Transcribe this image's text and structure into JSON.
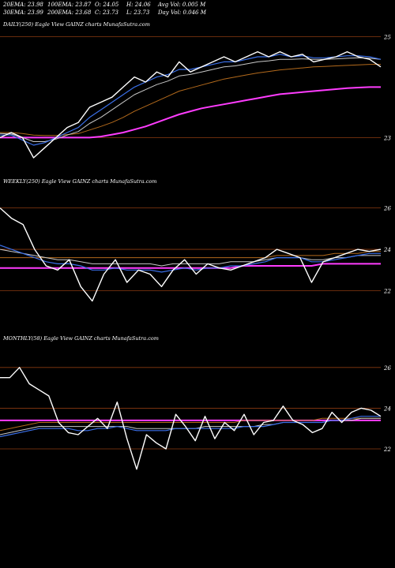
{
  "header": {
    "row1": [
      {
        "label": "20EMA:",
        "value": "23.98"
      },
      {
        "label": "100EMA:",
        "value": "23.87"
      },
      {
        "label": "O:",
        "value": "24.05"
      },
      {
        "label": "H:",
        "value": "24.06"
      },
      {
        "label": "Avg Vol:",
        "value": "0.005 M"
      }
    ],
    "row2": [
      {
        "label": "30EMA:",
        "value": "23.99"
      },
      {
        "label": "200EMA:",
        "value": "23.68"
      },
      {
        "label": "C:",
        "value": "23.73"
      },
      {
        "label": "L:",
        "value": "23.73"
      },
      {
        "label": "Day Vol:",
        "value": "0.046 M"
      }
    ]
  },
  "panels": [
    {
      "label": "DAILY(250) Eagle  View  GAINZ charts MunafaSutra.com"
    },
    {
      "label": "WEEKLY(250) Eagle  View  GAINZ charts MunafaSutra.com"
    },
    {
      "label": "MONTHLY(58) Eagle  View  GAINZ charts MunafaSutra.com"
    }
  ],
  "colors": {
    "price": "#ffffff",
    "ema_short": "#3a6fe8",
    "ema_mid": "#c8c8c8",
    "ema_long": "#b36a1c",
    "ema_200": "#ff3cff",
    "grid": "#8a3a10"
  },
  "chart_data": [
    {
      "type": "line",
      "title": "DAILY(250)",
      "ylim": [
        22.6,
        25.1
      ],
      "ticks": [
        {
          "value": 25,
          "label": "25"
        },
        {
          "value": 23,
          "label": "23"
        }
      ],
      "series": [
        {
          "role": "price",
          "values": [
            23.0,
            23.1,
            23.0,
            22.6,
            22.8,
            23.0,
            23.2,
            23.3,
            23.6,
            23.7,
            23.8,
            24.0,
            24.2,
            24.1,
            24.3,
            24.2,
            24.5,
            24.3,
            24.4,
            24.5,
            24.6,
            24.5,
            24.6,
            24.7,
            24.6,
            24.7,
            24.6,
            24.65,
            24.5,
            24.55,
            24.6,
            24.7,
            24.6,
            24.55,
            24.4
          ]
        },
        {
          "role": "ema_short",
          "values": [
            23.05,
            23.05,
            22.95,
            22.85,
            22.9,
            23.0,
            23.1,
            23.2,
            23.4,
            23.55,
            23.7,
            23.85,
            24.0,
            24.1,
            24.2,
            24.25,
            24.35,
            24.35,
            24.4,
            24.45,
            24.5,
            24.5,
            24.55,
            24.6,
            24.6,
            24.65,
            24.6,
            24.62,
            24.58,
            24.58,
            24.6,
            24.62,
            24.62,
            24.6,
            24.55
          ]
        },
        {
          "role": "ema_mid",
          "values": [
            23.08,
            23.07,
            23.0,
            22.92,
            22.92,
            22.97,
            23.05,
            23.12,
            23.28,
            23.4,
            23.55,
            23.7,
            23.85,
            23.95,
            24.05,
            24.12,
            24.22,
            24.25,
            24.3,
            24.35,
            24.4,
            24.42,
            24.46,
            24.5,
            24.52,
            24.55,
            24.55,
            24.56,
            24.55,
            24.55,
            24.56,
            24.57,
            24.58,
            24.57,
            24.55
          ]
        },
        {
          "role": "ema_long",
          "values": [
            23.1,
            23.1,
            23.08,
            23.05,
            23.04,
            23.04,
            23.06,
            23.08,
            23.15,
            23.22,
            23.3,
            23.4,
            23.52,
            23.62,
            23.72,
            23.82,
            23.92,
            23.98,
            24.04,
            24.1,
            24.16,
            24.2,
            24.24,
            24.28,
            24.31,
            24.34,
            24.36,
            24.38,
            24.4,
            24.41,
            24.42,
            24.43,
            24.44,
            24.45,
            24.45
          ]
        },
        {
          "role": "ema_200",
          "values": [
            23.0,
            23.0,
            23.0,
            23.0,
            23.0,
            23.0,
            23.0,
            23.0,
            23.0,
            23.02,
            23.06,
            23.1,
            23.16,
            23.22,
            23.3,
            23.38,
            23.46,
            23.52,
            23.58,
            23.62,
            23.66,
            23.7,
            23.74,
            23.78,
            23.82,
            23.86,
            23.88,
            23.9,
            23.92,
            23.94,
            23.96,
            23.98,
            23.99,
            24.0,
            24.0
          ]
        }
      ]
    },
    {
      "type": "line",
      "title": "WEEKLY(250)",
      "ylim": [
        20.8,
        26.9
      ],
      "ticks": [
        {
          "value": 26,
          "label": "26"
        },
        {
          "value": 24,
          "label": "24"
        },
        {
          "value": 22,
          "label": "22"
        }
      ],
      "series": [
        {
          "role": "price",
          "values": [
            26.0,
            25.5,
            25.2,
            24.0,
            23.2,
            23.0,
            23.5,
            22.2,
            21.5,
            22.8,
            23.5,
            22.4,
            23.0,
            22.8,
            22.2,
            23.0,
            23.5,
            22.8,
            23.3,
            23.1,
            23.0,
            23.2,
            23.4,
            23.6,
            24.0,
            23.8,
            23.6,
            22.4,
            23.4,
            23.6,
            23.8,
            24.0,
            23.9,
            24.0
          ]
        },
        {
          "role": "ema_short",
          "values": [
            24.2,
            24.0,
            23.8,
            23.6,
            23.4,
            23.3,
            23.3,
            23.2,
            23.0,
            23.0,
            23.1,
            23.0,
            23.0,
            23.0,
            22.9,
            23.0,
            23.1,
            23.0,
            23.1,
            23.1,
            23.2,
            23.2,
            23.3,
            23.4,
            23.6,
            23.6,
            23.6,
            23.4,
            23.4,
            23.5,
            23.6,
            23.7,
            23.8,
            23.8
          ]
        },
        {
          "role": "ema_mid",
          "values": [
            24.0,
            23.9,
            23.8,
            23.7,
            23.6,
            23.5,
            23.5,
            23.4,
            23.3,
            23.3,
            23.3,
            23.3,
            23.3,
            23.3,
            23.2,
            23.3,
            23.3,
            23.3,
            23.3,
            23.3,
            23.4,
            23.4,
            23.4,
            23.5,
            23.6,
            23.6,
            23.6,
            23.5,
            23.5,
            23.6,
            23.6,
            23.7,
            23.7,
            23.7
          ]
        },
        {
          "role": "ema_long",
          "values": [
            23.6,
            23.6,
            23.6,
            23.6,
            23.6,
            23.6,
            23.6,
            23.6,
            23.6,
            23.6,
            23.6,
            23.6,
            23.6,
            23.6,
            23.6,
            23.6,
            23.6,
            23.6,
            23.6,
            23.6,
            23.6,
            23.6,
            23.6,
            23.6,
            23.7,
            23.7,
            23.7,
            23.7,
            23.7,
            23.8,
            23.8,
            23.8,
            23.9,
            23.9
          ]
        },
        {
          "role": "ema_200",
          "values": [
            23.1,
            23.1,
            23.1,
            23.1,
            23.1,
            23.1,
            23.1,
            23.1,
            23.1,
            23.1,
            23.1,
            23.1,
            23.1,
            23.1,
            23.1,
            23.1,
            23.1,
            23.1,
            23.1,
            23.1,
            23.1,
            23.2,
            23.2,
            23.2,
            23.2,
            23.2,
            23.2,
            23.2,
            23.3,
            23.3,
            23.3,
            23.3,
            23.3,
            23.3
          ]
        }
      ]
    },
    {
      "type": "line",
      "title": "MONTHLY(58)",
      "ylim": [
        20.8,
        27.0
      ],
      "ticks": [
        {
          "value": 26,
          "label": "26"
        },
        {
          "value": 24,
          "label": "24"
        },
        {
          "value": 22,
          "label": "22"
        }
      ],
      "series": [
        {
          "role": "price",
          "values": [
            25.5,
            25.5,
            26.0,
            25.2,
            24.9,
            24.6,
            23.3,
            22.8,
            22.7,
            23.1,
            23.5,
            23.0,
            24.3,
            22.5,
            21.0,
            22.7,
            22.3,
            22.0,
            23.7,
            23.1,
            22.4,
            23.6,
            22.5,
            23.3,
            22.9,
            23.7,
            22.7,
            23.3,
            23.4,
            24.1,
            23.4,
            23.2,
            22.8,
            23.0,
            23.8,
            23.3,
            23.8,
            24.0,
            23.9,
            23.6
          ]
        },
        {
          "role": "ema_short",
          "values": [
            22.6,
            22.7,
            22.8,
            22.9,
            23.0,
            23.0,
            23.0,
            23.0,
            22.9,
            22.9,
            23.0,
            23.0,
            23.1,
            23.0,
            22.9,
            22.9,
            22.9,
            22.9,
            23.0,
            23.0,
            23.0,
            23.0,
            23.0,
            23.0,
            23.0,
            23.1,
            23.1,
            23.1,
            23.2,
            23.3,
            23.3,
            23.3,
            23.3,
            23.3,
            23.4,
            23.4,
            23.5,
            23.6,
            23.6,
            23.6
          ]
        },
        {
          "role": "ema_mid",
          "values": [
            22.7,
            22.8,
            22.9,
            23.0,
            23.1,
            23.1,
            23.1,
            23.1,
            23.1,
            23.1,
            23.1,
            23.1,
            23.1,
            23.1,
            23.0,
            23.0,
            23.0,
            23.0,
            23.0,
            23.0,
            23.0,
            23.1,
            23.1,
            23.1,
            23.1,
            23.1,
            23.1,
            23.2,
            23.2,
            23.3,
            23.3,
            23.3,
            23.3,
            23.3,
            23.4,
            23.4,
            23.4,
            23.5,
            23.5,
            23.5
          ]
        },
        {
          "role": "ema_long",
          "values": [
            22.9,
            23.0,
            23.1,
            23.2,
            23.3,
            23.3,
            23.3,
            23.3,
            23.3,
            23.3,
            23.3,
            23.3,
            23.3,
            23.3,
            23.3,
            23.3,
            23.3,
            23.3,
            23.3,
            23.3,
            23.3,
            23.3,
            23.3,
            23.3,
            23.3,
            23.4,
            23.4,
            23.4,
            23.4,
            23.4,
            23.4,
            23.4,
            23.4,
            23.5,
            23.5,
            23.5,
            23.5,
            23.5,
            23.5,
            23.5
          ]
        },
        {
          "role": "ema_200",
          "values": [
            23.4,
            23.4,
            23.4,
            23.4,
            23.4,
            23.4,
            23.4,
            23.4,
            23.4,
            23.4,
            23.4,
            23.4,
            23.4,
            23.4,
            23.4,
            23.4,
            23.4,
            23.4,
            23.4,
            23.4,
            23.4,
            23.4,
            23.4,
            23.4,
            23.4,
            23.4,
            23.4,
            23.4,
            23.4,
            23.4,
            23.4,
            23.4,
            23.4,
            23.4,
            23.4,
            23.4,
            23.4,
            23.4,
            23.4,
            23.4
          ]
        }
      ]
    }
  ]
}
